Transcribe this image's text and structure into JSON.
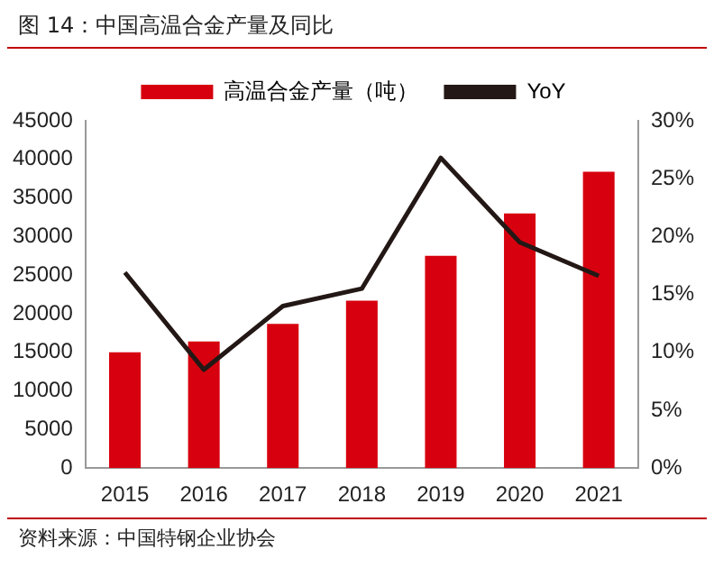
{
  "chart_data": {
    "type": "bar",
    "title": "图 14：中国高温合金产量及同比",
    "categories": [
      "2015",
      "2016",
      "2017",
      "2018",
      "2019",
      "2020",
      "2021"
    ],
    "series": [
      {
        "name": "高温合金产量（吨）",
        "color": "#d7000f",
        "values": [
          15000,
          16400,
          18700,
          21700,
          27500,
          33000,
          38400
        ]
      },
      {
        "name": "YoY",
        "type": "line",
        "axis": "y2",
        "color": "#231815",
        "marker": "none",
        "values": [
          16.9,
          8.5,
          14.0,
          15.5,
          26.8,
          19.5,
          16.6
        ]
      }
    ],
    "ylim": [
      0,
      45000
    ],
    "yticks": [
      0,
      5000,
      10000,
      15000,
      20000,
      25000,
      30000,
      35000,
      40000,
      45000
    ],
    "y2lim": [
      0,
      30
    ],
    "y2ticks": [
      {
        "value": 0,
        "label": "0%"
      },
      {
        "value": 5,
        "label": "5%"
      },
      {
        "value": 10,
        "label": "10%"
      },
      {
        "value": 15,
        "label": "15%"
      },
      {
        "value": 20,
        "label": "20%"
      },
      {
        "value": 25,
        "label": "25%"
      },
      {
        "value": 30,
        "label": "30%"
      }
    ],
    "grid": false,
    "legend": "top",
    "annotations": [
      "资料来源：中国特钢企业协会"
    ]
  }
}
